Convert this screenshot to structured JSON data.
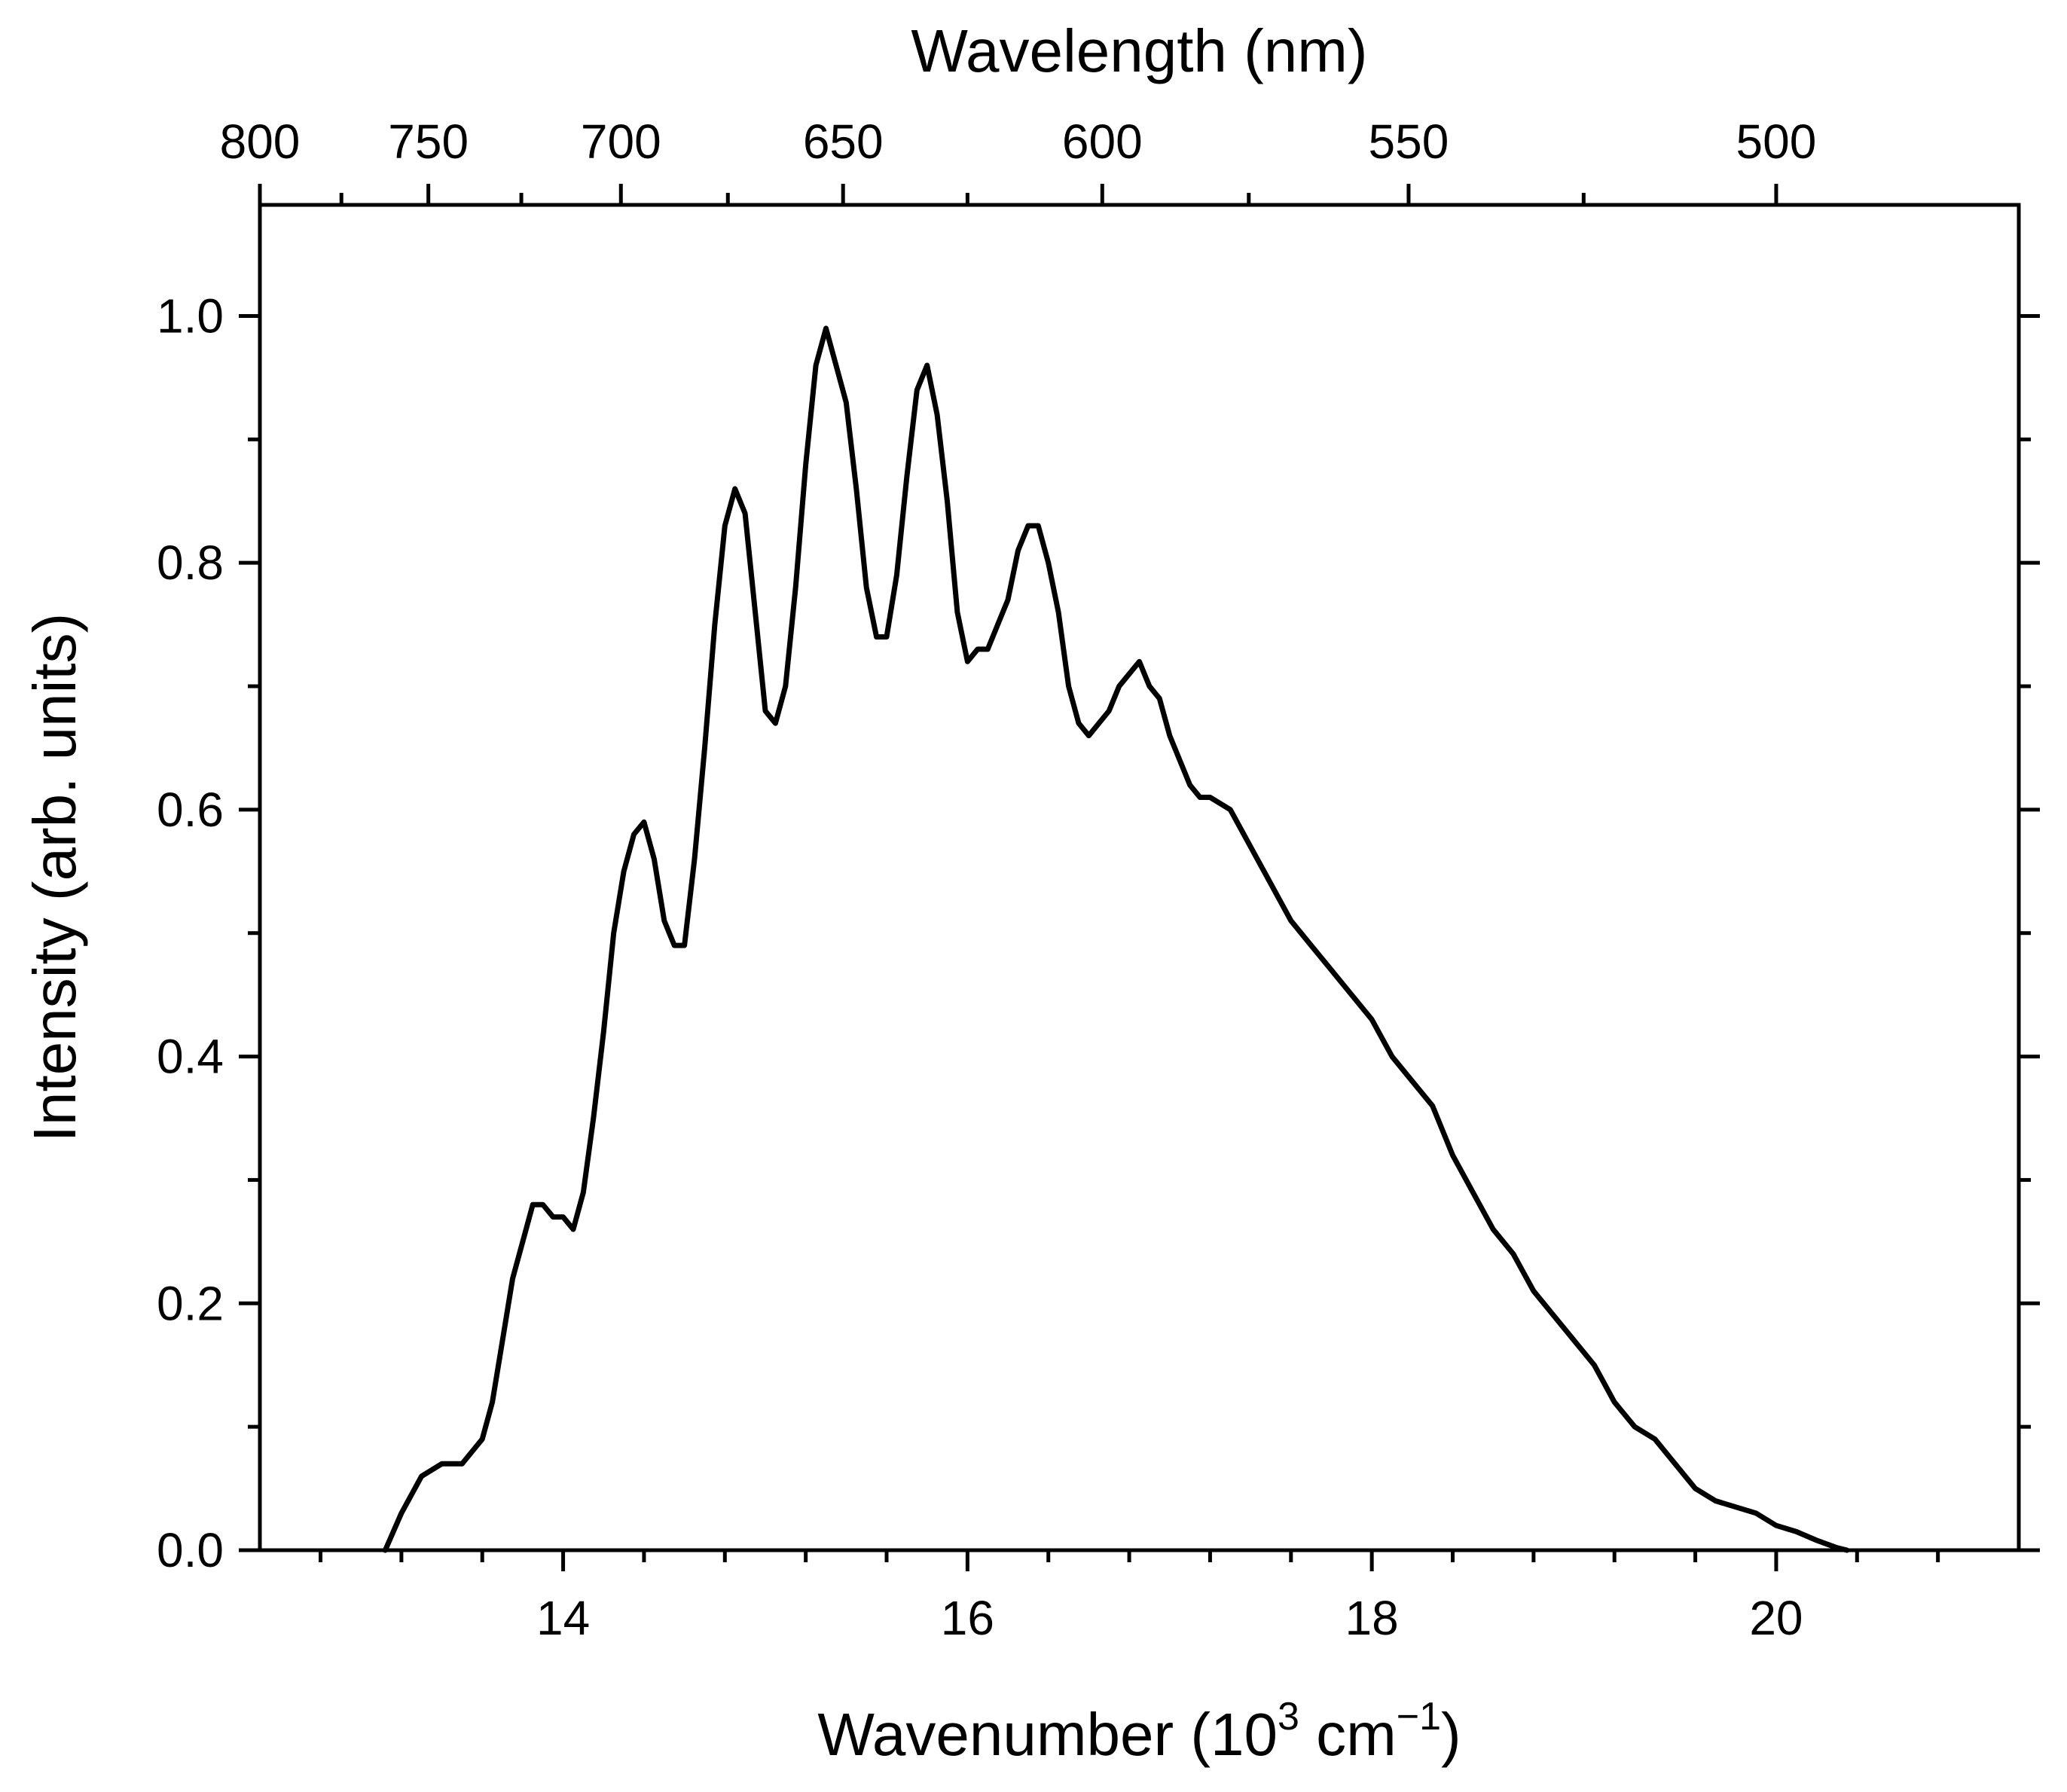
{
  "chart_data": {
    "type": "line",
    "title": "",
    "xlabel": "Wavenumber (10^3 cm^-1)",
    "xlabel_parts": {
      "base": "Wavenumber (10",
      "exp1": "3",
      "unit": " cm",
      "exp2": "−1",
      "close": ")"
    },
    "ylabel": "Intensity (arb. units)",
    "x2label": "Wavelength (nm)",
    "xlim": [
      12.5,
      21.2
    ],
    "ylim": [
      0.0,
      1.09
    ],
    "x_ticks": [
      14,
      16,
      18,
      20
    ],
    "x_tick_labels": [
      "14",
      "16",
      "18",
      "20"
    ],
    "x_minor_ticks": [
      12.8,
      13.2,
      13.6,
      14.4,
      14.8,
      15.2,
      15.6,
      16.4,
      16.8,
      17.2,
      17.6,
      18.4,
      18.8,
      19.2,
      19.6,
      20.4,
      20.8
    ],
    "y_ticks": [
      0.0,
      0.2,
      0.4,
      0.6,
      0.8,
      1.0
    ],
    "y_tick_labels": [
      "0.0",
      "0.2",
      "0.4",
      "0.6",
      "0.8",
      "1.0"
    ],
    "y_minor_ticks": [
      0.1,
      0.3,
      0.5,
      0.7,
      0.9
    ],
    "top_axis_ticks_nm": [
      800,
      750,
      700,
      650,
      600,
      550,
      500
    ],
    "top_axis_tick_labels": [
      "800",
      "750",
      "700",
      "650",
      "600",
      "550",
      "500"
    ],
    "top_axis_minor_ticks_nm": [
      775,
      725,
      675,
      625,
      575,
      525
    ],
    "series": [
      {
        "name": "Intensity",
        "color": "#000000",
        "x": [
          13.12,
          13.2,
          13.3,
          13.4,
          13.5,
          13.6,
          13.65,
          13.7,
          13.75,
          13.8,
          13.85,
          13.9,
          13.95,
          14.0,
          14.05,
          14.1,
          14.15,
          14.2,
          14.25,
          14.3,
          14.35,
          14.4,
          14.45,
          14.5,
          14.55,
          14.6,
          14.65,
          14.7,
          14.75,
          14.8,
          14.85,
          14.9,
          14.95,
          15.0,
          15.05,
          15.1,
          15.15,
          15.2,
          15.25,
          15.3,
          15.35,
          15.4,
          15.45,
          15.5,
          15.55,
          15.6,
          15.65,
          15.7,
          15.75,
          15.8,
          15.85,
          15.9,
          15.95,
          16.0,
          16.05,
          16.1,
          16.15,
          16.2,
          16.25,
          16.3,
          16.35,
          16.4,
          16.45,
          16.5,
          16.55,
          16.6,
          16.65,
          16.7,
          16.75,
          16.8,
          16.85,
          16.9,
          16.95,
          17.0,
          17.05,
          17.1,
          17.15,
          17.2,
          17.3,
          17.4,
          17.5,
          17.6,
          17.7,
          17.8,
          17.9,
          18.0,
          18.1,
          18.2,
          18.3,
          18.4,
          18.5,
          18.6,
          18.7,
          18.8,
          18.9,
          19.0,
          19.1,
          19.2,
          19.3,
          19.4,
          19.5,
          19.6,
          19.7,
          19.8,
          19.9,
          20.0,
          20.1,
          20.2,
          20.3,
          20.35
        ],
        "y": [
          0.0,
          0.03,
          0.06,
          0.07,
          0.07,
          0.09,
          0.12,
          0.17,
          0.22,
          0.25,
          0.28,
          0.28,
          0.27,
          0.27,
          0.26,
          0.29,
          0.35,
          0.42,
          0.5,
          0.55,
          0.58,
          0.59,
          0.56,
          0.51,
          0.49,
          0.49,
          0.56,
          0.65,
          0.75,
          0.83,
          0.86,
          0.84,
          0.76,
          0.68,
          0.67,
          0.7,
          0.78,
          0.88,
          0.96,
          0.99,
          0.96,
          0.93,
          0.86,
          0.78,
          0.74,
          0.74,
          0.79,
          0.87,
          0.94,
          0.96,
          0.92,
          0.85,
          0.76,
          0.72,
          0.73,
          0.73,
          0.75,
          0.77,
          0.81,
          0.83,
          0.83,
          0.8,
          0.76,
          0.7,
          0.67,
          0.66,
          0.67,
          0.68,
          0.7,
          0.71,
          0.72,
          0.7,
          0.69,
          0.66,
          0.64,
          0.62,
          0.61,
          0.61,
          0.6,
          0.57,
          0.54,
          0.51,
          0.49,
          0.47,
          0.45,
          0.43,
          0.4,
          0.38,
          0.36,
          0.32,
          0.29,
          0.26,
          0.24,
          0.21,
          0.19,
          0.17,
          0.15,
          0.12,
          0.1,
          0.09,
          0.07,
          0.05,
          0.04,
          0.035,
          0.03,
          0.02,
          0.015,
          0.008,
          0.002,
          0.0
        ]
      }
    ]
  }
}
